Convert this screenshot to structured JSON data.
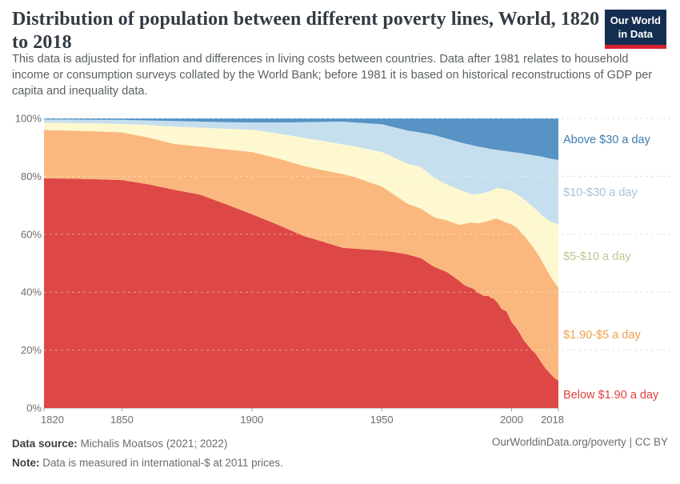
{
  "logo": {
    "line1": "Our World",
    "line2": "in Data",
    "bg_color": "#142e52",
    "accent_color": "#d52230"
  },
  "chart_data": {
    "type": "area",
    "stacked": true,
    "unit": "%",
    "title": "Distribution of population between different poverty lines, World, 1820 to 2018",
    "subtitle": "This data is adjusted for inflation and differences in living costs between countries. Data after 1981 relates to household income or consumption surveys collated by the World Bank; before 1981 it is based on historical reconstructions of GDP per capita and inequality data.",
    "xlabel": "",
    "ylabel": "",
    "ylim": [
      0,
      100
    ],
    "yticks": [
      0,
      20,
      40,
      60,
      80,
      100
    ],
    "xticks": [
      1820,
      1850,
      1900,
      1950,
      2000,
      2018
    ],
    "grid": true,
    "legend_position": "right",
    "x": [
      1820,
      1830,
      1840,
      1850,
      1860,
      1870,
      1880,
      1890,
      1900,
      1910,
      1920,
      1929,
      1935,
      1940,
      1945,
      1950,
      1955,
      1960,
      1965,
      1970,
      1975,
      1980,
      1981,
      1982,
      1983,
      1984,
      1985,
      1986,
      1987,
      1988,
      1989,
      1990,
      1991,
      1992,
      1993,
      1994,
      1995,
      1996,
      1997,
      1998,
      1999,
      2000,
      2001,
      2002,
      2003,
      2004,
      2005,
      2006,
      2007,
      2008,
      2009,
      2010,
      2011,
      2012,
      2013,
      2014,
      2015,
      2016,
      2017,
      2018
    ],
    "series": [
      {
        "name": "Below $1.90 a day",
        "color": "#dd4846",
        "label_color": "#e0413d",
        "values": [
          79.3,
          79.2,
          79.0,
          78.7,
          77.3,
          75.4,
          73.7,
          70.4,
          66.9,
          63.3,
          59.4,
          57.0,
          55.3,
          55.0,
          54.7,
          54.4,
          53.8,
          53.0,
          51.8,
          48.8,
          47.0,
          43.8,
          43.0,
          42.4,
          41.9,
          41.6,
          41.3,
          40.6,
          39.9,
          39.4,
          38.9,
          38.6,
          38.8,
          38.0,
          37.8,
          36.9,
          35.8,
          34.3,
          33.8,
          33.4,
          31.5,
          29.6,
          28.5,
          27.4,
          26.0,
          24.4,
          23.0,
          22.0,
          20.8,
          19.9,
          19.0,
          17.8,
          16.3,
          15.0,
          13.7,
          12.8,
          11.7,
          10.8,
          10.0,
          9.4
        ]
      },
      {
        "name": "$1.90-$5 a day",
        "color": "#fab87e",
        "label_color": "#efa04b",
        "values": [
          16.7,
          16.6,
          16.5,
          16.5,
          16.1,
          15.8,
          16.6,
          18.9,
          21.5,
          22.9,
          24.2,
          24.8,
          25.5,
          24.6,
          23.3,
          22.1,
          19.7,
          17.5,
          17.1,
          17.1,
          17.8,
          19.4,
          20.4,
          21.2,
          21.9,
          22.4,
          22.7,
          23.3,
          23.9,
          24.5,
          25.2,
          25.7,
          25.8,
          26.9,
          27.5,
          28.5,
          29.4,
          30.5,
          30.6,
          30.6,
          32.2,
          33.8,
          34.3,
          34.8,
          35.3,
          35.9,
          36.3,
          36.2,
          36.2,
          35.9,
          35.6,
          35.5,
          35.5,
          35.2,
          34.9,
          34.2,
          33.7,
          33.2,
          32.7,
          32.1
        ]
      },
      {
        "name": "$5-$10 a day",
        "color": "#fdf8cf",
        "label_color": "#c3c590",
        "values": [
          2.5,
          2.6,
          2.8,
          2.9,
          4.3,
          6.0,
          6.5,
          7.1,
          7.7,
          8.6,
          9.7,
          10.2,
          10.2,
          10.7,
          11.3,
          11.9,
          12.9,
          13.8,
          14.3,
          13.7,
          12.4,
          12.2,
          11.6,
          11.2,
          10.6,
          10.0,
          9.7,
          9.9,
          10.1,
          10.1,
          10.1,
          10.2,
          10.1,
          10.1,
          10.1,
          10.4,
          10.8,
          11.0,
          11.2,
          11.3,
          11.4,
          11.5,
          11.6,
          11.7,
          12.0,
          12.3,
          12.6,
          13.0,
          13.4,
          13.8,
          14.2,
          14.7,
          15.3,
          16.1,
          17.0,
          17.9,
          19.0,
          20.0,
          21.0,
          22.0
        ]
      },
      {
        "name": "$10-$30 a day",
        "color": "#c6dfee",
        "label_color": "#a5c4da",
        "values": [
          1.1,
          1.2,
          1.2,
          1.4,
          1.6,
          1.9,
          2.1,
          2.3,
          2.5,
          3.8,
          5.4,
          6.8,
          7.9,
          8.3,
          9.0,
          9.6,
          10.5,
          11.5,
          11.9,
          14.7,
          15.8,
          16.4,
          16.5,
          16.5,
          16.7,
          16.9,
          17.0,
          16.7,
          16.4,
          16.1,
          15.8,
          15.3,
          14.9,
          14.4,
          13.9,
          13.4,
          13.0,
          13.1,
          13.2,
          13.4,
          13.5,
          13.5,
          13.9,
          14.3,
          14.8,
          15.3,
          15.9,
          16.4,
          17.1,
          17.7,
          18.4,
          19.0,
          19.8,
          20.4,
          20.9,
          21.4,
          21.7,
          21.9,
          22.1,
          22.1
        ]
      },
      {
        "name": "Above $30 a day",
        "color": "#5793c4",
        "label_color": "#3d7cb0",
        "values": [
          0.4,
          0.4,
          0.5,
          0.5,
          0.7,
          0.9,
          1.1,
          1.3,
          1.4,
          1.4,
          1.3,
          1.2,
          1.1,
          1.4,
          1.7,
          2.0,
          3.1,
          4.2,
          4.9,
          5.7,
          7.0,
          8.2,
          8.5,
          8.7,
          8.9,
          9.1,
          9.3,
          9.5,
          9.7,
          9.9,
          10.0,
          10.2,
          10.4,
          10.6,
          10.7,
          10.8,
          11.0,
          11.1,
          11.2,
          11.3,
          11.4,
          11.6,
          11.7,
          11.8,
          11.9,
          12.1,
          12.2,
          12.4,
          12.5,
          12.7,
          12.8,
          13.0,
          13.1,
          13.3,
          13.5,
          13.7,
          13.9,
          14.1,
          14.2,
          14.4
        ]
      }
    ]
  },
  "footer": {
    "source_label": "Data source:",
    "source_value": " Michalis Moatsos (2021; 2022)",
    "note_label": "Note:",
    "note_value": " Data is measured in international-$ at 2011 prices.",
    "credit": "OurWorldinData.org/poverty | CC BY"
  }
}
